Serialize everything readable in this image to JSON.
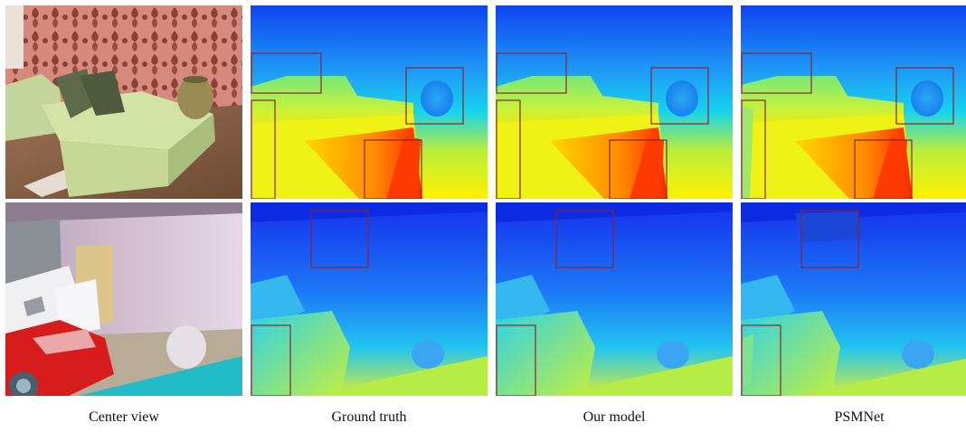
{
  "captions": {
    "col1": "Center view",
    "col2": "Ground truth",
    "col3": "Our model",
    "col4": "PSMNet"
  },
  "colors": {
    "crop_box": "#8b2430",
    "wall_pink": "#c77a6d",
    "sofa_green": "#b9cf93",
    "car_red": "#d51e1e",
    "depth_far": "#1b24e8",
    "depth_near": "#ff2a00"
  }
}
